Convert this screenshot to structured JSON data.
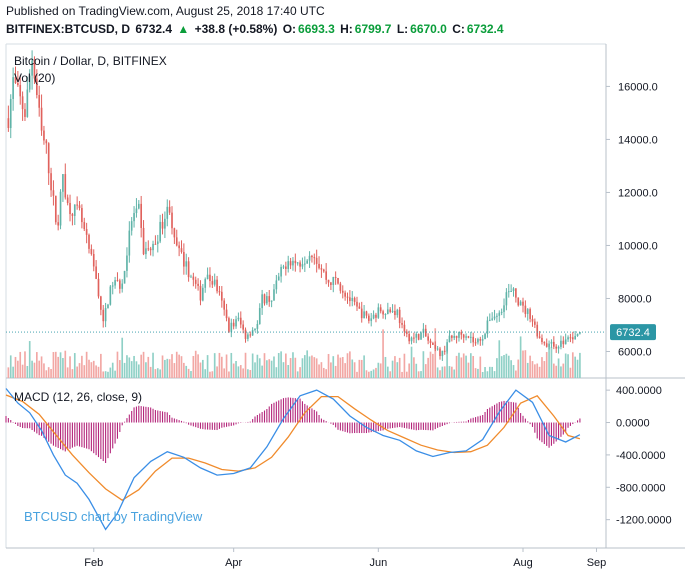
{
  "header": {
    "published": "Published on TradingView.com, August 25, 2018 17:40 UTC",
    "symbol": "BITFINEX:BTCUSD, D",
    "last": "6732.4",
    "arrow": "▲",
    "change": "+38.8 (+0.58%)",
    "o_label": "O:",
    "o_val": "6693.3",
    "h_label": "H:",
    "h_val": "6799.7",
    "l_label": "L:",
    "l_val": "6670.0",
    "c_label": "C:",
    "c_val": "6732.4"
  },
  "colors": {
    "up": "#5fb3a8",
    "down": "#e0615c",
    "vol_up": "#8fd0c6",
    "vol_down": "#f2a7a4",
    "macd": "#3a8ee6",
    "signal": "#f08b2c",
    "hist": "#b4267b",
    "last_price": "#2b96a5",
    "watermark": "#4aa3df"
  },
  "chart_data": [
    {
      "type": "candlestick",
      "title": "Bitcoin / Dollar, D, BITFINEX",
      "volume_label": "Vol (20)",
      "x_ticks": [
        "Feb",
        "Apr",
        "Jun",
        "Aug",
        "Sep"
      ],
      "y_ticks": [
        "16000.0",
        "14000.0",
        "12000.0",
        "10000.0",
        "8000.0",
        "6000.0"
      ],
      "ylim": [
        5000,
        17600
      ],
      "x_range": [
        "2017-12-26",
        "2018-09-05"
      ],
      "last_price": "6732.4",
      "keypoints": [
        [
          "2017-12-27",
          14800
        ],
        [
          "2017-12-29",
          16200
        ],
        [
          "2018-01-03",
          15000
        ],
        [
          "2018-01-06",
          17100
        ],
        [
          "2018-01-10",
          14200
        ],
        [
          "2018-01-12",
          13600
        ],
        [
          "2018-01-16",
          11000
        ],
        [
          "2018-01-17",
          10900
        ],
        [
          "2018-01-19",
          12700
        ],
        [
          "2018-01-21",
          11500
        ],
        [
          "2018-01-26",
          11200
        ],
        [
          "2018-01-30",
          9800
        ],
        [
          "2018-02-02",
          8800
        ],
        [
          "2018-02-05",
          7000
        ],
        [
          "2018-02-06",
          7600
        ],
        [
          "2018-02-09",
          8600
        ],
        [
          "2018-02-13",
          8500
        ],
        [
          "2018-02-17",
          11000
        ],
        [
          "2018-02-20",
          11300
        ],
        [
          "2018-02-22",
          9800
        ],
        [
          "2018-02-26",
          9900
        ],
        [
          "2018-03-02",
          10900
        ],
        [
          "2018-03-05",
          11500
        ],
        [
          "2018-03-07",
          10100
        ],
        [
          "2018-03-12",
          9200
        ],
        [
          "2018-03-18",
          8100
        ],
        [
          "2018-03-20",
          8800
        ],
        [
          "2018-03-24",
          8600
        ],
        [
          "2018-03-26",
          8100
        ],
        [
          "2018-03-30",
          6900
        ],
        [
          "2018-04-03",
          7200
        ],
        [
          "2018-04-06",
          6600
        ],
        [
          "2018-04-11",
          7000
        ],
        [
          "2018-04-13",
          8000
        ],
        [
          "2018-04-17",
          8000
        ],
        [
          "2018-04-20",
          8800
        ],
        [
          "2018-04-24",
          9500
        ],
        [
          "2018-04-28",
          9300
        ],
        [
          "2018-05-04",
          9800
        ],
        [
          "2018-05-07",
          9300
        ],
        [
          "2018-05-11",
          8600
        ],
        [
          "2018-05-14",
          8700
        ],
        [
          "2018-05-18",
          8200
        ],
        [
          "2018-05-23",
          7600
        ],
        [
          "2018-05-28",
          7200
        ],
        [
          "2018-06-02",
          7600
        ],
        [
          "2018-06-09",
          7500
        ],
        [
          "2018-06-12",
          6600
        ],
        [
          "2018-06-16",
          6500
        ],
        [
          "2018-06-20",
          6700
        ],
        [
          "2018-06-24",
          6100
        ],
        [
          "2018-06-28",
          5900
        ],
        [
          "2018-06-30",
          6400
        ],
        [
          "2018-07-04",
          6600
        ],
        [
          "2018-07-08",
          6700
        ],
        [
          "2018-07-12",
          6300
        ],
        [
          "2018-07-16",
          6700
        ],
        [
          "2018-07-18",
          7300
        ],
        [
          "2018-07-22",
          7400
        ],
        [
          "2018-07-25",
          8200
        ],
        [
          "2018-07-28",
          8200
        ],
        [
          "2018-08-01",
          7600
        ],
        [
          "2018-08-04",
          7400
        ],
        [
          "2018-08-08",
          6500
        ],
        [
          "2018-08-11",
          6300
        ],
        [
          "2018-08-14",
          6200
        ],
        [
          "2018-08-17",
          6300
        ],
        [
          "2018-08-20",
          6500
        ],
        [
          "2018-08-23",
          6500
        ],
        [
          "2018-08-25",
          6732.4
        ]
      ]
    },
    {
      "type": "line",
      "title": "MACD (12, 26, close, 9)",
      "series_names": [
        "MACD",
        "Signal",
        "Histogram"
      ],
      "y_ticks": [
        "400.0000",
        "0.0000",
        "-400.0000",
        "-800.0000",
        "-1200.0000"
      ],
      "ylim": [
        -1550,
        550
      ],
      "macd": [
        [
          "2017-12-26",
          420
        ],
        [
          "2017-12-31",
          240
        ],
        [
          "2018-01-05",
          120
        ],
        [
          "2018-01-10",
          -100
        ],
        [
          "2018-01-15",
          -400
        ],
        [
          "2018-01-20",
          -650
        ],
        [
          "2018-01-25",
          -750
        ],
        [
          "2018-01-30",
          -950
        ],
        [
          "2018-02-06",
          -1320
        ],
        [
          "2018-02-11",
          -1120
        ],
        [
          "2018-02-18",
          -680
        ],
        [
          "2018-02-25",
          -480
        ],
        [
          "2018-03-04",
          -360
        ],
        [
          "2018-03-11",
          -430
        ],
        [
          "2018-03-18",
          -560
        ],
        [
          "2018-03-25",
          -650
        ],
        [
          "2018-04-01",
          -630
        ],
        [
          "2018-04-08",
          -560
        ],
        [
          "2018-04-15",
          -300
        ],
        [
          "2018-04-22",
          50
        ],
        [
          "2018-04-29",
          330
        ],
        [
          "2018-05-06",
          400
        ],
        [
          "2018-05-13",
          290
        ],
        [
          "2018-05-20",
          80
        ],
        [
          "2018-05-27",
          -60
        ],
        [
          "2018-06-03",
          -160
        ],
        [
          "2018-06-10",
          -220
        ],
        [
          "2018-06-17",
          -350
        ],
        [
          "2018-06-24",
          -420
        ],
        [
          "2018-07-01",
          -370
        ],
        [
          "2018-07-08",
          -350
        ],
        [
          "2018-07-15",
          -210
        ],
        [
          "2018-07-22",
          130
        ],
        [
          "2018-07-29",
          400
        ],
        [
          "2018-08-05",
          250
        ],
        [
          "2018-08-12",
          -160
        ],
        [
          "2018-08-19",
          -240
        ],
        [
          "2018-08-25",
          -150
        ]
      ],
      "signal": [
        [
          "2017-12-26",
          340
        ],
        [
          "2018-01-02",
          260
        ],
        [
          "2018-01-09",
          100
        ],
        [
          "2018-01-16",
          -150
        ],
        [
          "2018-01-23",
          -400
        ],
        [
          "2018-01-30",
          -620
        ],
        [
          "2018-02-06",
          -820
        ],
        [
          "2018-02-13",
          -960
        ],
        [
          "2018-02-20",
          -830
        ],
        [
          "2018-02-27",
          -600
        ],
        [
          "2018-03-06",
          -440
        ],
        [
          "2018-03-13",
          -440
        ],
        [
          "2018-03-20",
          -500
        ],
        [
          "2018-03-27",
          -580
        ],
        [
          "2018-04-03",
          -600
        ],
        [
          "2018-04-10",
          -560
        ],
        [
          "2018-04-17",
          -430
        ],
        [
          "2018-04-24",
          -180
        ],
        [
          "2018-05-01",
          120
        ],
        [
          "2018-05-08",
          320
        ],
        [
          "2018-05-15",
          320
        ],
        [
          "2018-05-22",
          170
        ],
        [
          "2018-05-29",
          30
        ],
        [
          "2018-06-05",
          -100
        ],
        [
          "2018-06-12",
          -190
        ],
        [
          "2018-06-19",
          -280
        ],
        [
          "2018-06-26",
          -340
        ],
        [
          "2018-07-03",
          -370
        ],
        [
          "2018-07-10",
          -360
        ],
        [
          "2018-07-17",
          -280
        ],
        [
          "2018-07-24",
          -60
        ],
        [
          "2018-07-31",
          240
        ],
        [
          "2018-08-07",
          330
        ],
        [
          "2018-08-14",
          80
        ],
        [
          "2018-08-20",
          -160
        ],
        [
          "2018-08-25",
          -200
        ]
      ]
    }
  ],
  "watermark": "BTCUSD chart by TradingView"
}
